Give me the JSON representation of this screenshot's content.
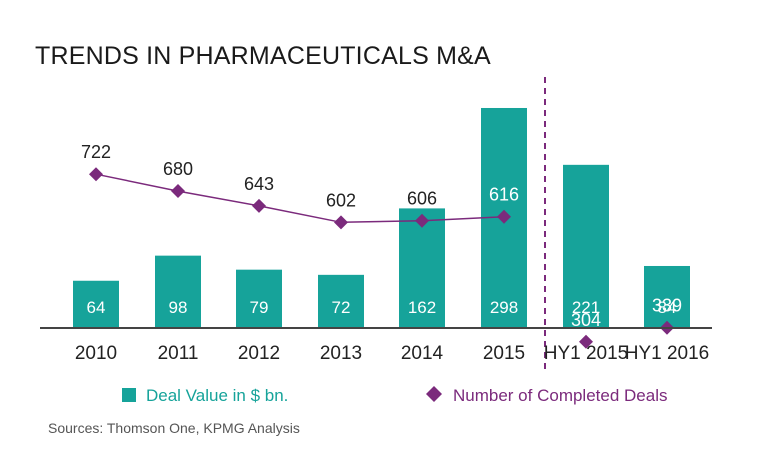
{
  "chart_data": {
    "type": "bar",
    "title": "TRENDS IN PHARMACEUTICALS M&A",
    "categories": [
      "2010",
      "2011",
      "2012",
      "2013",
      "2014",
      "2015",
      "HY1 2015",
      "HY1 2016"
    ],
    "series": [
      {
        "name": "Deal Value in $ bn.",
        "type": "bar",
        "values": [
          64,
          98,
          79,
          72,
          162,
          298,
          221,
          84
        ],
        "color": "#16a39a"
      },
      {
        "name": "Number of Completed Deals",
        "type": "line-marker",
        "values": [
          722,
          680,
          643,
          602,
          606,
          616,
          304,
          339
        ],
        "color": "#7b2a7c",
        "connected_through_index": 5
      }
    ],
    "divider_after_category": "2015",
    "source": "Sources: Thomson One, KPMG Analysis",
    "grid": false,
    "legend_position": "bottom"
  },
  "colors": {
    "bar": "#16a39a",
    "deals": "#7b2a7c",
    "axis": "#444444",
    "text": "#222222"
  }
}
